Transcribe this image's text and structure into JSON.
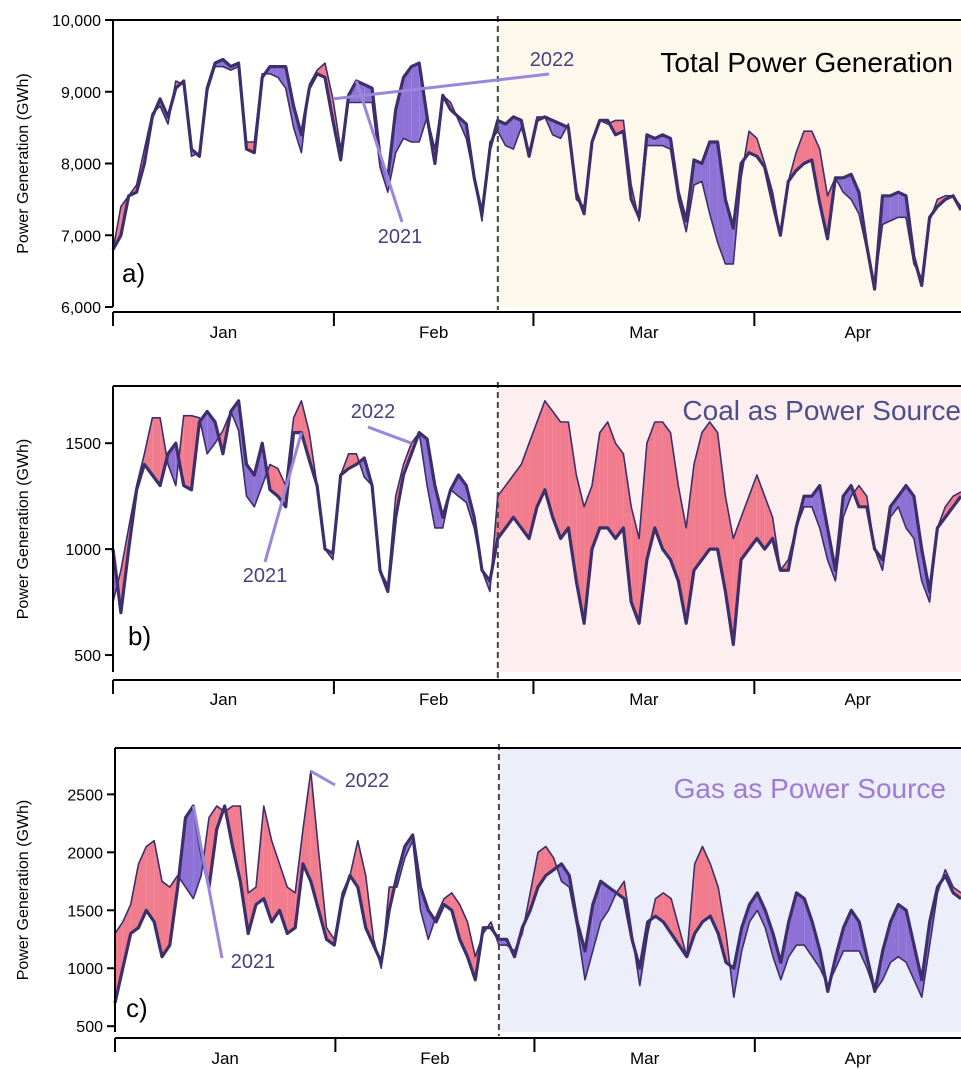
{
  "colors": {
    "series_2021": "#8f72d6",
    "series_2022": "#f07c8e",
    "line_2021": "#3c2f6b",
    "line_2022": "#3c2f6b",
    "annotation_line": "#9a86dc",
    "annotation_text": "#4a3f80",
    "divider": "#444444",
    "panel_a_shade": "#fdf8ec",
    "panel_b_shade": "#fdeef0",
    "panel_c_shade": "#eceefa",
    "title_a": "#000000",
    "title_b": "#4b4f8c",
    "title_c": "#a07bd6"
  },
  "chart_data": [
    {
      "type": "area",
      "panel_label": "a)",
      "title": "Total Power Generation",
      "ylabel": "Power Generation (GWh)",
      "xlabel": "",
      "ylim": [
        6000,
        10000
      ],
      "yticks": [
        6000,
        7000,
        8000,
        9000,
        10000
      ],
      "ytick_labels": [
        "6,000",
        "7,000",
        "8,000",
        "9,000",
        "10,000"
      ],
      "x_range": [
        "2022-01-01",
        "2022-04-30"
      ],
      "month_ticks": [
        "2022-01-01",
        "2022-02-01",
        "2022-03-01",
        "2022-04-01"
      ],
      "month_labels": [
        "Jan",
        "Feb",
        "Mar",
        "Apr"
      ],
      "divider_date": "2022-02-24",
      "shade_from": "2022-02-24",
      "annotations": [
        {
          "text": "2022"
        },
        {
          "text": "2021"
        }
      ],
      "series": [
        {
          "name": "2021",
          "values": [
            6800,
            7000,
            7550,
            7600,
            8000,
            8650,
            8900,
            8650,
            9050,
            9150,
            8200,
            8100,
            9050,
            9400,
            9450,
            9350,
            9400,
            8200,
            8150,
            9200,
            9350,
            9350,
            9350,
            8800,
            8400,
            9050,
            9250,
            9200,
            8600,
            8050,
            8950,
            9150,
            9100,
            9050,
            8100,
            7800,
            8750,
            9200,
            9350,
            9400,
            8650,
            8000,
            8950,
            8750,
            8650,
            8550,
            7800,
            7300,
            8200,
            8600,
            8550,
            8650,
            8600,
            8100,
            8600,
            8650,
            8600,
            8550,
            8500,
            7600,
            7300,
            8300,
            8600,
            8600,
            8400,
            8450,
            7500,
            7250,
            8400,
            8350,
            8400,
            8350,
            7600,
            7200,
            8050,
            8000,
            8300,
            8300,
            7500,
            7100,
            8000,
            8150,
            8100,
            7950,
            7450,
            7000,
            7750,
            7900,
            8000,
            8050,
            7450,
            6950,
            7800,
            7800,
            7850,
            7600,
            6850,
            6250,
            7550,
            7550,
            7600,
            7550,
            6700,
            6300,
            7250,
            7400,
            7500,
            7550,
            7350
          ]
        },
        {
          "name": "2022",
          "values": [
            6800,
            7400,
            7550,
            7700,
            8200,
            8700,
            8800,
            8550,
            9150,
            9100,
            8100,
            8150,
            9000,
            9350,
            9350,
            9300,
            9350,
            8300,
            8300,
            9250,
            9250,
            9200,
            9050,
            8500,
            8150,
            9100,
            9300,
            9400,
            8900,
            8200,
            8850,
            8850,
            8850,
            8850,
            7950,
            7600,
            8150,
            8350,
            8300,
            8300,
            8650,
            8200,
            8950,
            8850,
            8600,
            8350,
            7800,
            7200,
            8300,
            8450,
            8250,
            8200,
            8500,
            8150,
            8650,
            8650,
            8400,
            8350,
            8550,
            7500,
            7400,
            8300,
            8600,
            8550,
            8600,
            8600,
            7700,
            7200,
            8250,
            8250,
            8250,
            8200,
            7500,
            7050,
            7700,
            7750,
            7300,
            6900,
            6600,
            6600,
            7800,
            8450,
            8350,
            8000,
            7600,
            7000,
            7750,
            8150,
            8450,
            8450,
            8200,
            7550,
            7800,
            7600,
            7500,
            7300,
            6800,
            6300,
            7150,
            7200,
            7250,
            7250,
            6600,
            6400,
            7200,
            7500,
            7550,
            7550,
            7400
          ]
        }
      ]
    },
    {
      "type": "area",
      "panel_label": "b)",
      "title": "Coal as Power Source",
      "ylabel": "Power Generation (GWh)",
      "xlabel": "",
      "ylim": [
        420,
        1770
      ],
      "yticks": [
        500,
        1000,
        1500
      ],
      "ytick_labels": [
        "500",
        "1000",
        "1500"
      ],
      "x_range": [
        "2022-01-01",
        "2022-04-30"
      ],
      "month_ticks": [
        "2022-01-01",
        "2022-02-01",
        "2022-03-01",
        "2022-04-01"
      ],
      "month_labels": [
        "Jan",
        "Feb",
        "Mar",
        "Apr"
      ],
      "divider_date": "2022-02-24",
      "shade_from": "2022-02-24",
      "annotations": [
        {
          "text": "2022"
        },
        {
          "text": "2021"
        }
      ],
      "series": [
        {
          "name": "2021",
          "values": [
            1000,
            700,
            1000,
            1280,
            1400,
            1350,
            1300,
            1450,
            1500,
            1300,
            1280,
            1600,
            1650,
            1600,
            1450,
            1650,
            1700,
            1400,
            1350,
            1500,
            1280,
            1250,
            1200,
            1550,
            1550,
            1420,
            1300,
            1000,
            980,
            1350,
            1380,
            1400,
            1430,
            1300,
            900,
            800,
            1150,
            1350,
            1450,
            1550,
            1520,
            1300,
            1150,
            1280,
            1350,
            1300,
            1150,
            900,
            850,
            1050,
            1100,
            1150,
            1100,
            1050,
            1200,
            1280,
            1150,
            1050,
            1100,
            850,
            650,
            1000,
            1100,
            1100,
            1050,
            1100,
            750,
            650,
            950,
            1100,
            1000,
            950,
            850,
            650,
            900,
            950,
            1000,
            1000,
            800,
            550,
            950,
            1000,
            1050,
            1000,
            1050,
            900,
            900,
            1100,
            1250,
            1250,
            1300,
            1100,
            900,
            1250,
            1300,
            1200,
            1200,
            1000,
            950,
            1200,
            1250,
            1300,
            1250,
            1000,
            800,
            1100,
            1150,
            1200,
            1250
          ]
        },
        {
          "name": "2022",
          "values": [
            750,
            900,
            1100,
            1300,
            1450,
            1620,
            1620,
            1400,
            1300,
            1630,
            1630,
            1620,
            1450,
            1500,
            1560,
            1650,
            1560,
            1250,
            1200,
            1300,
            1400,
            1380,
            1300,
            1620,
            1700,
            1550,
            1300,
            1000,
            950,
            1350,
            1450,
            1450,
            1340,
            1300,
            900,
            830,
            1250,
            1400,
            1500,
            1550,
            1300,
            1100,
            1100,
            1280,
            1250,
            1220,
            1100,
            900,
            800,
            1250,
            1300,
            1350,
            1400,
            1500,
            1600,
            1700,
            1650,
            1600,
            1600,
            1350,
            1200,
            1300,
            1550,
            1600,
            1500,
            1450,
            1200,
            1050,
            1500,
            1600,
            1600,
            1550,
            1300,
            1100,
            1400,
            1550,
            1600,
            1550,
            1250,
            1050,
            1150,
            1250,
            1350,
            1250,
            1150,
            900,
            950,
            1100,
            1200,
            1200,
            1100,
            950,
            850,
            1150,
            1250,
            1300,
            1250,
            1000,
            900,
            1150,
            1200,
            1100,
            1050,
            850,
            750,
            1100,
            1200,
            1250,
            1270
          ]
        }
      ]
    },
    {
      "type": "area",
      "panel_label": "c)",
      "title": "Gas as Power Source",
      "ylabel": "Power Generation (GWh)",
      "xlabel": "",
      "ylim": [
        450,
        2900
      ],
      "yticks": [
        500,
        1000,
        1500,
        2000,
        2500
      ],
      "ytick_labels": [
        "500",
        "1000",
        "1500",
        "2000",
        "2500"
      ],
      "x_range": [
        "2022-01-01",
        "2022-04-30"
      ],
      "month_ticks": [
        "2022-01-01",
        "2022-02-01",
        "2022-03-01",
        "2022-04-01"
      ],
      "month_labels": [
        "Jan",
        "Feb",
        "Mar",
        "Apr"
      ],
      "divider_date": "2022-02-24",
      "shade_from": "2022-02-24",
      "annotations": [
        {
          "text": "2022"
        },
        {
          "text": "2021"
        }
      ],
      "series": [
        {
          "name": "2021",
          "values": [
            700,
            1000,
            1300,
            1350,
            1500,
            1400,
            1100,
            1200,
            1700,
            2300,
            2400,
            2000,
            1700,
            2200,
            2400,
            2050,
            1750,
            1300,
            1550,
            1600,
            1400,
            1500,
            1300,
            1350,
            1900,
            1750,
            1500,
            1250,
            1200,
            1600,
            1800,
            1700,
            1350,
            1200,
            1050,
            1500,
            1800,
            2050,
            2150,
            1700,
            1500,
            1400,
            1550,
            1500,
            1250,
            1100,
            900,
            1350,
            1350,
            1250,
            1250,
            1100,
            1350,
            1500,
            1700,
            1800,
            1850,
            1900,
            1800,
            1400,
            1150,
            1550,
            1750,
            1700,
            1650,
            1600,
            1250,
            1000,
            1400,
            1450,
            1400,
            1300,
            1200,
            1100,
            1300,
            1400,
            1450,
            1300,
            1050,
            1000,
            1350,
            1550,
            1650,
            1500,
            1300,
            1050,
            1400,
            1650,
            1600,
            1400,
            1150,
            800,
            1100,
            1350,
            1500,
            1400,
            1100,
            800,
            1150,
            1400,
            1550,
            1500,
            1200,
            900,
            1400,
            1700,
            1800,
            1650,
            1600
          ]
        },
        {
          "name": "2022",
          "values": [
            1300,
            1400,
            1550,
            1900,
            2050,
            2100,
            1750,
            1700,
            1800,
            1700,
            1600,
            1800,
            2300,
            2400,
            2350,
            2400,
            2400,
            1650,
            1700,
            2400,
            2100,
            1900,
            1700,
            1650,
            2200,
            2700,
            2000,
            1350,
            1250,
            1650,
            1800,
            2100,
            1800,
            1250,
            1000,
            1700,
            1700,
            1950,
            2100,
            1500,
            1250,
            1450,
            1600,
            1650,
            1550,
            1400,
            1100,
            1300,
            1400,
            1200,
            1200,
            1150,
            1300,
            1650,
            2000,
            2050,
            1950,
            1750,
            1700,
            1350,
            900,
            1150,
            1400,
            1500,
            1650,
            1750,
            1300,
            850,
            1300,
            1600,
            1650,
            1600,
            1350,
            1100,
            1900,
            2050,
            1900,
            1700,
            1300,
            750,
            1150,
            1400,
            1500,
            1350,
            1100,
            900,
            1100,
            1200,
            1200,
            1100,
            1000,
            850,
            1000,
            1150,
            1150,
            1150,
            1000,
            800,
            900,
            1050,
            1100,
            1050,
            900,
            750,
            1200,
            1650,
            1850,
            1700,
            1650
          ]
        }
      ]
    }
  ]
}
